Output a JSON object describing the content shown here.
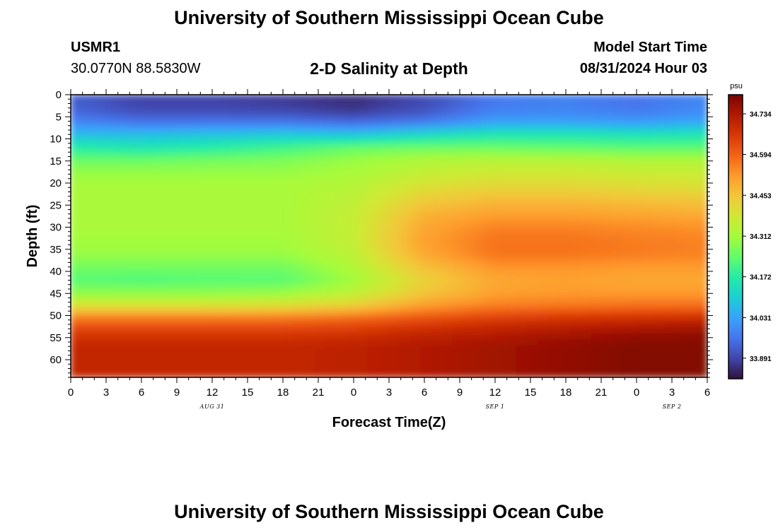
{
  "header": {
    "title": "University of Southern Mississippi Ocean Cube",
    "station": "USMR1",
    "coordinates": "30.0770N  88.5830W",
    "subtitle": "2-D Salinity at Depth",
    "model_start_label": "Model Start Time",
    "model_start_value": "08/31/2024 Hour 03"
  },
  "footer": {
    "title": "University of Southern Mississippi Ocean Cube"
  },
  "chart_data": {
    "type": "heatmap",
    "xlabel": "Forecast Time(Z)",
    "ylabel": "Depth (ft)",
    "x_tick_labels": [
      "0",
      "3",
      "6",
      "9",
      "12",
      "15",
      "18",
      "21",
      "0",
      "3",
      "6",
      "9",
      "12",
      "15",
      "18",
      "21",
      "0",
      "3",
      "6"
    ],
    "x_range_hours": [
      0,
      54
    ],
    "date_labels": [
      {
        "text": "AUG 31",
        "hour": 12
      },
      {
        "text": "SEP 1",
        "hour": 36
      },
      {
        "text": "SEP 2",
        "hour": 51
      }
    ],
    "y_tick_labels": [
      "0",
      "5",
      "10",
      "15",
      "20",
      "25",
      "30",
      "35",
      "40",
      "45",
      "50",
      "55",
      "60"
    ],
    "y_range_ft": [
      0,
      64
    ],
    "y_inverted": true,
    "colorbar": {
      "unit": "psu",
      "min": 33.82,
      "max": 34.8,
      "labels": [
        "34.734",
        "34.594",
        "34.453",
        "34.312",
        "34.172",
        "34.031",
        "33.891"
      ],
      "colors": [
        "#30123b",
        "#4145ab",
        "#4675ed",
        "#39a2fc",
        "#1bcfd4",
        "#24eca6",
        "#61fc6c",
        "#a4fc3b",
        "#d1e834",
        "#f3c63a",
        "#fe9b2d",
        "#f36315",
        "#d93806",
        "#b11901",
        "#7a0402"
      ]
    },
    "depth_levels_ft": [
      0,
      3,
      6,
      9,
      12,
      15,
      18,
      21,
      24,
      27,
      30,
      33,
      36,
      39,
      42,
      45,
      48,
      51,
      54,
      57,
      60,
      63
    ],
    "time_hours": [
      0,
      6,
      12,
      18,
      24,
      30,
      36,
      42,
      48,
      54
    ],
    "values_psu": [
      [
        33.93,
        33.89,
        33.89,
        33.88,
        33.86,
        33.9,
        33.97,
        33.98,
        33.96,
        33.99
      ],
      [
        33.93,
        33.89,
        33.89,
        33.88,
        33.86,
        33.9,
        33.97,
        33.98,
        33.96,
        33.99
      ],
      [
        33.98,
        33.95,
        33.95,
        33.95,
        33.93,
        33.96,
        34.02,
        34.02,
        34.01,
        34.03
      ],
      [
        34.07,
        34.07,
        34.08,
        34.09,
        34.08,
        34.12,
        34.15,
        34.15,
        34.14,
        34.15
      ],
      [
        34.17,
        34.15,
        34.17,
        34.2,
        34.24,
        34.25,
        34.25,
        34.24,
        34.23,
        34.23
      ],
      [
        34.25,
        34.25,
        34.26,
        34.27,
        34.3,
        34.33,
        34.34,
        34.34,
        34.33,
        34.33
      ],
      [
        34.3,
        34.3,
        34.3,
        34.3,
        34.32,
        34.36,
        34.38,
        34.38,
        34.37,
        34.37
      ],
      [
        34.32,
        34.32,
        34.32,
        34.32,
        34.34,
        34.4,
        34.42,
        34.42,
        34.41,
        34.4
      ],
      [
        34.32,
        34.32,
        34.32,
        34.32,
        34.35,
        34.44,
        34.47,
        34.47,
        34.46,
        34.45
      ],
      [
        34.32,
        34.32,
        34.32,
        34.32,
        34.36,
        34.48,
        34.51,
        34.51,
        34.5,
        34.49
      ],
      [
        34.32,
        34.32,
        34.32,
        34.32,
        34.36,
        34.5,
        34.55,
        34.55,
        34.54,
        34.53
      ],
      [
        34.31,
        34.31,
        34.31,
        34.31,
        34.36,
        34.51,
        34.57,
        34.57,
        34.56,
        34.55
      ],
      [
        34.3,
        34.3,
        34.3,
        34.3,
        34.35,
        34.5,
        34.57,
        34.57,
        34.56,
        34.55
      ],
      [
        34.26,
        34.26,
        34.26,
        34.26,
        34.33,
        34.46,
        34.53,
        34.53,
        34.52,
        34.52
      ],
      [
        34.23,
        34.22,
        34.23,
        34.23,
        34.31,
        34.43,
        34.5,
        34.51,
        34.5,
        34.5
      ],
      [
        34.29,
        34.29,
        34.29,
        34.3,
        34.35,
        34.45,
        34.51,
        34.52,
        34.52,
        34.52
      ],
      [
        34.4,
        34.4,
        34.4,
        34.41,
        34.44,
        34.52,
        34.56,
        34.57,
        34.58,
        34.58
      ],
      [
        34.58,
        34.58,
        34.58,
        34.58,
        34.6,
        34.63,
        34.66,
        34.68,
        34.69,
        34.7
      ],
      [
        34.66,
        34.66,
        34.66,
        34.66,
        34.67,
        34.7,
        34.72,
        34.74,
        34.76,
        34.77
      ],
      [
        34.7,
        34.7,
        34.7,
        34.7,
        34.71,
        34.73,
        34.75,
        34.77,
        34.79,
        34.79
      ],
      [
        34.7,
        34.7,
        34.7,
        34.7,
        34.71,
        34.73,
        34.75,
        34.77,
        34.79,
        34.79
      ],
      [
        34.7,
        34.7,
        34.7,
        34.7,
        34.71,
        34.73,
        34.75,
        34.77,
        34.79,
        34.79
      ]
    ]
  }
}
